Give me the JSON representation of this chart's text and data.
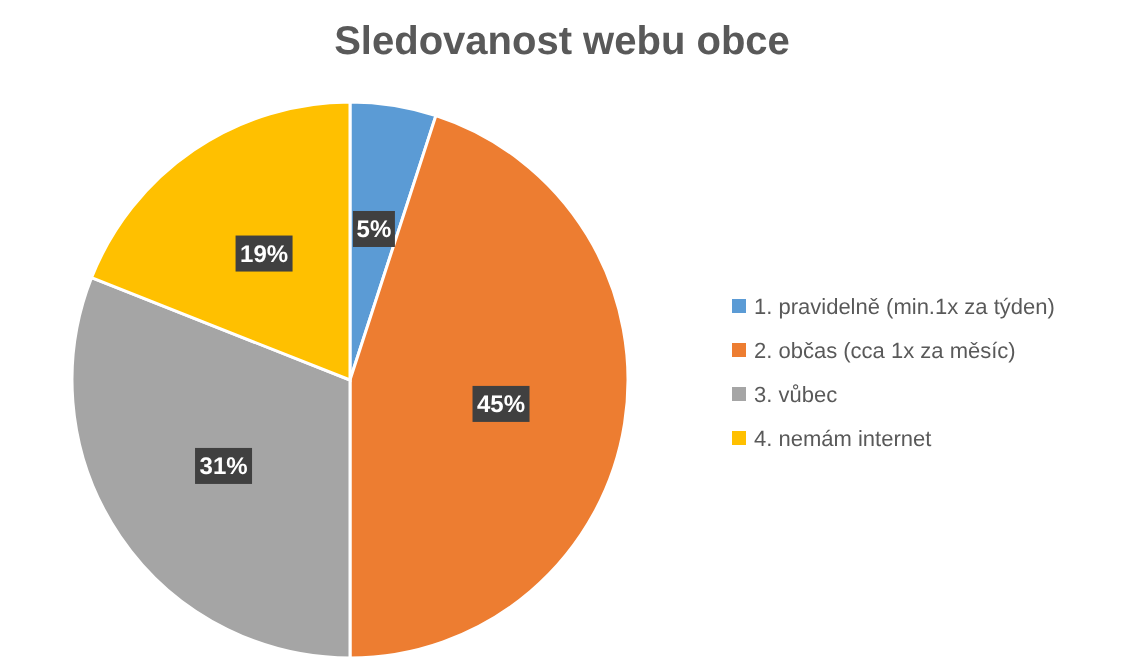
{
  "chart_data": {
    "type": "pie",
    "title": "Sledovanost webu obce",
    "categories": [
      "1. pravidelně (min.1x za týden)",
      "2. občas (cca 1x za měsíc)",
      "3. vůbec",
      "4. nemám internet"
    ],
    "values": [
      5,
      45,
      31,
      19
    ],
    "value_labels": [
      "5%",
      "45%",
      "31%",
      "19%"
    ],
    "colors": [
      "#5b9bd5",
      "#ed7d31",
      "#a5a5a5",
      "#ffc000"
    ],
    "legend": "right"
  }
}
